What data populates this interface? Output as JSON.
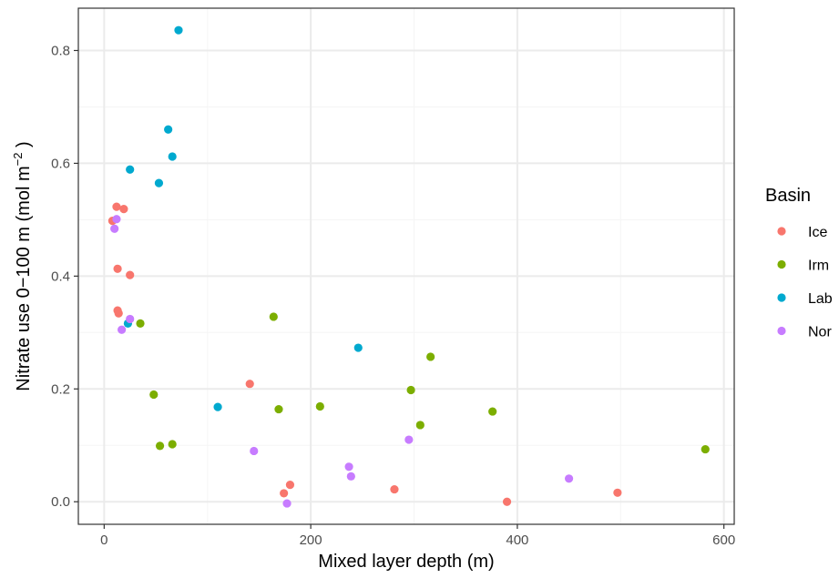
{
  "chart_data": {
    "type": "scatter",
    "title": "",
    "xlabel": "Mixed layer depth (m)",
    "ylabel": {
      "prefix": "Nitrate use 0−100 m (mol m",
      "superscript": "−2",
      "suffix": " )"
    },
    "xlim": [
      -25,
      610
    ],
    "ylim": [
      -0.04,
      0.875
    ],
    "x_ticks": [
      0,
      200,
      400,
      600
    ],
    "x_tick_labels": [
      "0",
      "200",
      "400",
      "600"
    ],
    "y_ticks": [
      0.0,
      0.2,
      0.4,
      0.6,
      0.8
    ],
    "y_tick_labels": [
      "0.0",
      "0.2",
      "0.4",
      "0.6",
      "0.8"
    ],
    "grid": true,
    "legend_position": "right",
    "legend_title": "Basin",
    "series": [
      {
        "name": "Ice",
        "color": "#F8766D",
        "points": [
          {
            "x": 8,
            "y": 0.498
          },
          {
            "x": 12,
            "y": 0.523
          },
          {
            "x": 19,
            "y": 0.519
          },
          {
            "x": 13,
            "y": 0.413
          },
          {
            "x": 25,
            "y": 0.402
          },
          {
            "x": 13,
            "y": 0.339
          },
          {
            "x": 14,
            "y": 0.334
          },
          {
            "x": 141,
            "y": 0.209
          },
          {
            "x": 174,
            "y": 0.015
          },
          {
            "x": 180,
            "y": 0.03
          },
          {
            "x": 281,
            "y": 0.022
          },
          {
            "x": 390,
            "y": 0.0
          },
          {
            "x": 497,
            "y": 0.016
          }
        ]
      },
      {
        "name": "Irm",
        "color": "#7CAE00",
        "points": [
          {
            "x": 35,
            "y": 0.316
          },
          {
            "x": 48,
            "y": 0.19
          },
          {
            "x": 54,
            "y": 0.099
          },
          {
            "x": 66,
            "y": 0.102
          },
          {
            "x": 164,
            "y": 0.328
          },
          {
            "x": 169,
            "y": 0.164
          },
          {
            "x": 209,
            "y": 0.169
          },
          {
            "x": 297,
            "y": 0.198
          },
          {
            "x": 306,
            "y": 0.136
          },
          {
            "x": 316,
            "y": 0.257
          },
          {
            "x": 376,
            "y": 0.16
          },
          {
            "x": 582,
            "y": 0.093
          }
        ]
      },
      {
        "name": "Lab",
        "color": "#00A9CF",
        "points": [
          {
            "x": 72,
            "y": 0.836
          },
          {
            "x": 62,
            "y": 0.66
          },
          {
            "x": 66,
            "y": 0.612
          },
          {
            "x": 25,
            "y": 0.589
          },
          {
            "x": 53,
            "y": 0.565
          },
          {
            "x": 23,
            "y": 0.316
          },
          {
            "x": 110,
            "y": 0.168
          },
          {
            "x": 246,
            "y": 0.273
          }
        ]
      },
      {
        "name": "Nor",
        "color": "#C77CFF",
        "points": [
          {
            "x": 12,
            "y": 0.501
          },
          {
            "x": 10,
            "y": 0.484
          },
          {
            "x": 25,
            "y": 0.324
          },
          {
            "x": 17,
            "y": 0.305
          },
          {
            "x": 145,
            "y": 0.09
          },
          {
            "x": 177,
            "y": -0.003
          },
          {
            "x": 237,
            "y": 0.062
          },
          {
            "x": 239,
            "y": 0.045
          },
          {
            "x": 295,
            "y": 0.11
          },
          {
            "x": 450,
            "y": 0.041
          }
        ]
      }
    ]
  },
  "style": {
    "panel_border": "#333333",
    "grid_major": "#EBEBEB",
    "grid_minor": "#F5F5F5",
    "tick_color": "#333333"
  }
}
